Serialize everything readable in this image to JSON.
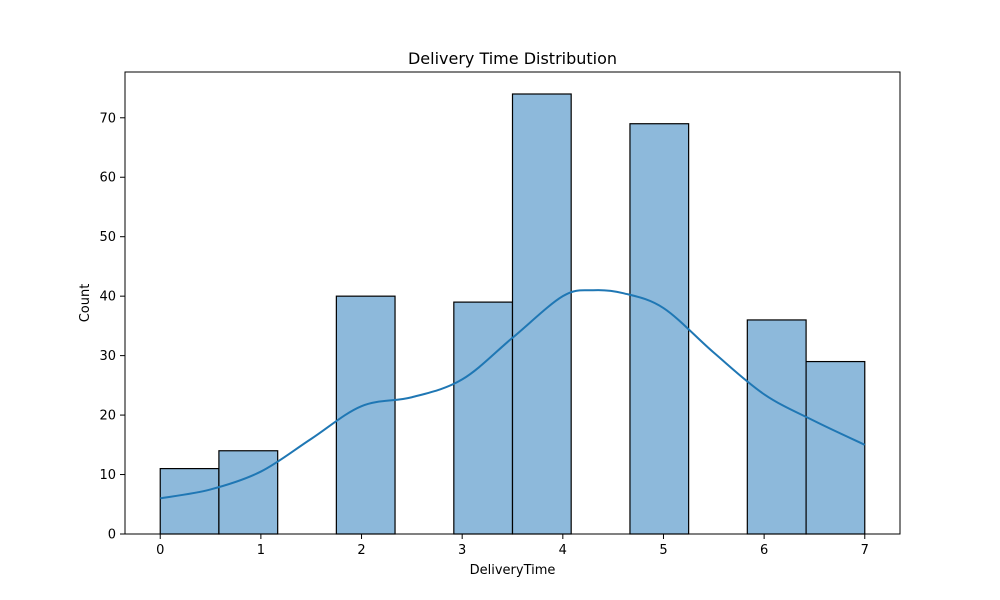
{
  "chart_data": {
    "type": "bar",
    "title": "Delivery Time Distribution",
    "xlabel": "DeliveryTime",
    "ylabel": "Count",
    "xlim": [
      -0.35,
      7.35
    ],
    "ylim": [
      0,
      77.7
    ],
    "xticks": [
      0,
      1,
      2,
      3,
      4,
      5,
      6,
      7
    ],
    "yticks": [
      0,
      10,
      20,
      30,
      40,
      50,
      60,
      70
    ],
    "grid": false,
    "bins": [
      {
        "start": 0.0,
        "end": 0.583,
        "count": 11
      },
      {
        "start": 0.583,
        "end": 1.167,
        "count": 14
      },
      {
        "start": 1.167,
        "end": 1.75,
        "count": 0
      },
      {
        "start": 1.75,
        "end": 2.333,
        "count": 40
      },
      {
        "start": 2.333,
        "end": 2.917,
        "count": 0
      },
      {
        "start": 2.917,
        "end": 3.5,
        "count": 39
      },
      {
        "start": 3.5,
        "end": 4.083,
        "count": 74
      },
      {
        "start": 4.083,
        "end": 4.667,
        "count": 0
      },
      {
        "start": 4.667,
        "end": 5.25,
        "count": 69
      },
      {
        "start": 5.25,
        "end": 5.833,
        "count": 0
      },
      {
        "start": 5.833,
        "end": 6.417,
        "count": 36
      },
      {
        "start": 6.417,
        "end": 7.0,
        "count": 29
      }
    ],
    "kde": {
      "x": [
        0,
        0.5,
        1.0,
        1.5,
        2.0,
        2.5,
        3.0,
        3.5,
        4.0,
        4.3,
        4.6,
        5.0,
        5.5,
        6.0,
        6.5,
        7.0
      ],
      "y": [
        6,
        7.5,
        10.5,
        16,
        21.5,
        23,
        26,
        33,
        40,
        41,
        40.5,
        38,
        30.5,
        23.5,
        19,
        15
      ]
    },
    "colors": {
      "bar": "#8db9db",
      "kde": "#1f77b4"
    }
  }
}
